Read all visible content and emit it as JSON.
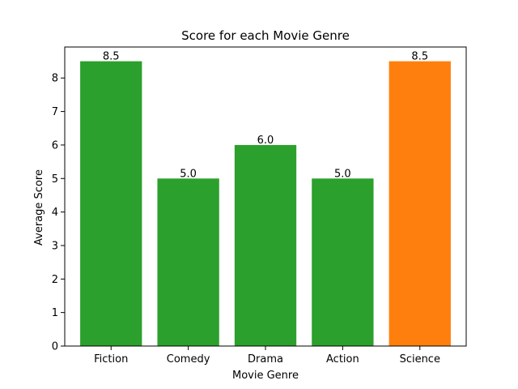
{
  "chart_data": {
    "type": "bar",
    "title": "Score for each Movie Genre",
    "xlabel": "Movie Genre",
    "ylabel": "Average Score",
    "categories": [
      "Fiction",
      "Comedy",
      "Drama",
      "Action",
      "Science"
    ],
    "values": [
      8.5,
      5.0,
      6.0,
      5.0,
      8.5
    ],
    "data_labels": [
      "8.5",
      "5.0",
      "6.0",
      "5.0",
      "8.5"
    ],
    "colors": [
      "#2ca02c",
      "#2ca02c",
      "#2ca02c",
      "#2ca02c",
      "#ff7f0e"
    ],
    "ylim": [
      0,
      8.925
    ],
    "yticks": [
      0,
      1,
      2,
      3,
      4,
      5,
      6,
      7,
      8
    ],
    "grid": false,
    "legend": "none"
  }
}
